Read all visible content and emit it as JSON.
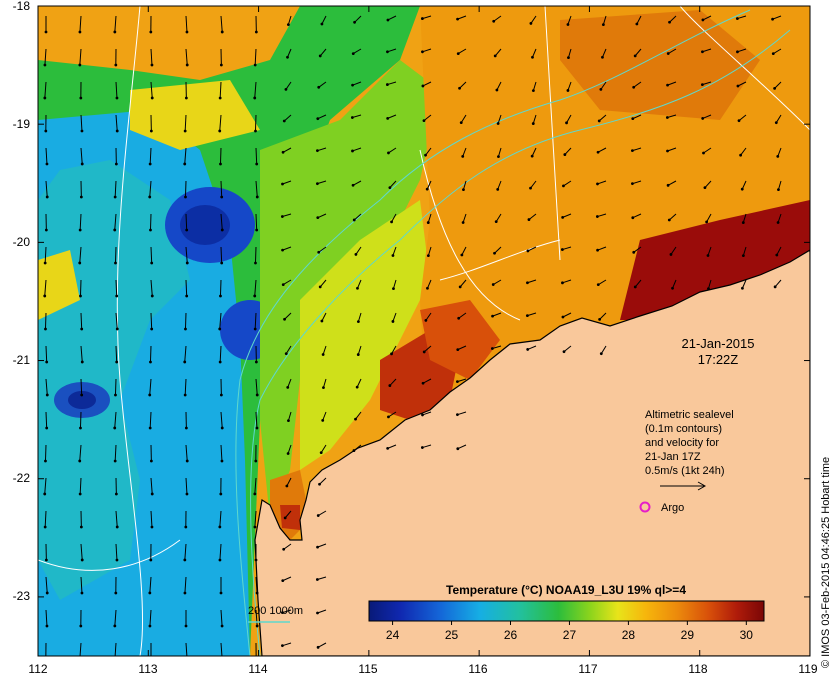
{
  "axes": {
    "x_ticks": [
      "112",
      "113",
      "114",
      "115",
      "116",
      "117",
      "118",
      "119"
    ],
    "y_ticks": [
      "-18",
      "-19",
      "-20",
      "-21",
      "-22",
      "-23"
    ],
    "lon_range": [
      112,
      119
    ],
    "lat_range": [
      -18,
      -23.5
    ]
  },
  "timestamp": {
    "date": "21-Jan-2015",
    "time": "17:22Z"
  },
  "legend_text": {
    "line1": "Altimetric sealevel",
    "line2": "(0.1m contours)",
    "line3": "and velocity for",
    "line4": "21-Jan 17Z",
    "line5": "0.5m/s (1kt 24h)",
    "argo_label": "Argo"
  },
  "depth_key": {
    "label": "200  1000m"
  },
  "colorbar": {
    "title": "Temperature (°C) NOAA19_L3U 19% ql>=4",
    "ticks": [
      "24",
      "25",
      "26",
      "27",
      "28",
      "29",
      "30"
    ],
    "range": [
      23.6,
      30.3
    ]
  },
  "credit": "© IMOS 03-Feb-2015 04:46:25 Hobart time",
  "colors": {
    "land": "#f9c89b",
    "cold": "#0a2a9c",
    "cool": "#1ab0e6",
    "mid": "#2fbf3a",
    "warm": "#f2a10a",
    "hot": "#8c0a0a",
    "isobath": "#5fd8cc",
    "argo": "#e61ec8",
    "contour": "#ffffff"
  }
}
